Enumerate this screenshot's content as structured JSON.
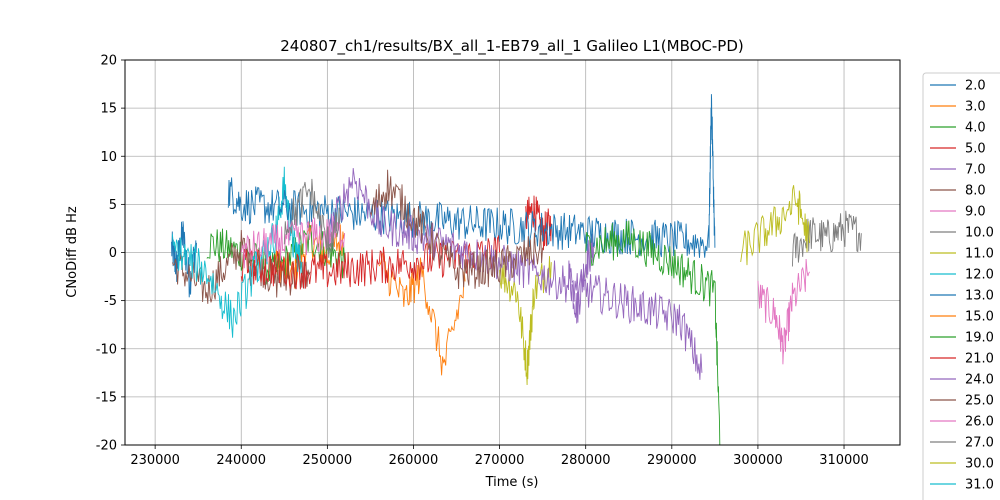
{
  "chart_data": {
    "type": "line",
    "title": "240807_ch1/results/BX_all_1-EB79_all_1 Galileo L1(MBOC-PD)",
    "xlabel": "Time (s)",
    "ylabel": "CNoDiff dB Hz",
    "xlim": [
      226500,
      316500
    ],
    "ylim": [
      -20,
      20
    ],
    "xticks": [
      230000,
      240000,
      250000,
      260000,
      270000,
      280000,
      290000,
      300000,
      310000
    ],
    "yticks": [
      -20,
      -15,
      -10,
      -5,
      0,
      5,
      10,
      15,
      20
    ],
    "grid": true,
    "legend_position": "outside-right",
    "series": [
      {
        "name": "2.0",
        "color": "#1f77b4",
        "x": [
          231900,
          232500,
          233200,
          234000,
          234800
        ],
        "y": [
          0.5,
          -1.5,
          2.0,
          -3.0,
          1.0
        ]
      },
      {
        "name": "3.0",
        "color": "#ff7f0e",
        "x": [
          244000,
          246000,
          248000,
          250000,
          252000
        ],
        "y": [
          -1.0,
          -2.5,
          1.5,
          -0.5,
          2.0
        ]
      },
      {
        "name": "4.0",
        "color": "#2ca02c",
        "x": [
          236000,
          240000,
          244000,
          248000,
          252000
        ],
        "y": [
          1.0,
          0.0,
          -2.0,
          1.5,
          -1.0
        ]
      },
      {
        "name": "5.0",
        "color": "#d62728",
        "x": [
          273000,
          274000,
          275000,
          276000
        ],
        "y": [
          3.5,
          4.5,
          2.0,
          3.0
        ]
      },
      {
        "name": "7.0",
        "color": "#9467bd",
        "x": [
          278000,
          279000,
          280000,
          281000
        ],
        "y": [
          -2.0,
          -6.0,
          -1.0,
          0.5
        ]
      },
      {
        "name": "8.0",
        "color": "#8c564b",
        "x": [
          232000,
          236000,
          240000,
          244000,
          248000
        ],
        "y": [
          -1.0,
          -4.0,
          0.5,
          -3.0,
          -2.0
        ]
      },
      {
        "name": "9.0",
        "color": "#e377c2",
        "x": [
          300000,
          302000,
          303000,
          304000,
          306000
        ],
        "y": [
          -4.5,
          -6.5,
          -10.0,
          -5.0,
          -2.0
        ]
      },
      {
        "name": "10.0",
        "color": "#7f7f7f",
        "x": [
          304000,
          306000,
          308000,
          310000,
          312000
        ],
        "y": [
          0.0,
          2.0,
          1.5,
          2.5,
          2.0
        ]
      },
      {
        "name": "11.0",
        "color": "#bcbd22",
        "x": [
          270000,
          272000,
          273200,
          274000,
          276000
        ],
        "y": [
          -2.0,
          -4.0,
          -12.0,
          -4.0,
          -1.0
        ]
      },
      {
        "name": "12.0",
        "color": "#17becf",
        "x": [
          242000,
          244000,
          245000,
          246000,
          247000
        ],
        "y": [
          -1.0,
          2.0,
          7.0,
          1.0,
          -1.0
        ]
      },
      {
        "name": "13.0",
        "color": "#1f77b4",
        "x": [
          238500,
          240000,
          294300,
          294600,
          295000
        ],
        "y": [
          6.5,
          5.0,
          1.0,
          16.0,
          0.5
        ]
      },
      {
        "name": "15.0",
        "color": "#ff7f0e",
        "x": [
          256000,
          259000,
          261000,
          263500,
          266000
        ],
        "y": [
          -1.0,
          -5.0,
          -2.0,
          -12.0,
          -3.0
        ]
      },
      {
        "name": "19.0",
        "color": "#2ca02c",
        "x": [
          280000,
          285000,
          290000,
          295000,
          295600
        ],
        "y": [
          0.5,
          1.5,
          -1.0,
          -4.0,
          -20.0
        ]
      },
      {
        "name": "21.0",
        "color": "#d62728",
        "x": [
          240000,
          250000,
          260000,
          270000
        ],
        "y": [
          -1.5,
          -2.0,
          -1.0,
          0.0
        ]
      },
      {
        "name": "24.0",
        "color": "#9467bd",
        "x": [
          250000,
          253000,
          256000,
          291000,
          293500
        ],
        "y": [
          1.5,
          8.0,
          3.0,
          -7.0,
          -12.5
        ]
      },
      {
        "name": "25.0",
        "color": "#8c564b",
        "x": [
          255000,
          257000,
          265000,
          270000,
          275000
        ],
        "y": [
          4.0,
          7.0,
          -2.0,
          -1.5,
          0.5
        ]
      },
      {
        "name": "26.0",
        "color": "#e377c2",
        "x": [
          240000,
          246000,
          252000
        ],
        "y": [
          0.0,
          1.5,
          2.0
        ]
      },
      {
        "name": "27.0",
        "color": "#7f7f7f",
        "x": [
          245000,
          248000,
          250000,
          251500
        ],
        "y": [
          2.5,
          6.5,
          1.0,
          3.0
        ]
      },
      {
        "name": "30.0",
        "color": "#bcbd22",
        "x": [
          298000,
          302000,
          304500,
          306000
        ],
        "y": [
          0.0,
          3.0,
          5.5,
          1.0
        ]
      },
      {
        "name": "31.0",
        "color": "#17becf",
        "x": [
          232000,
          236000,
          239000,
          242000
        ],
        "y": [
          0.5,
          -2.0,
          -7.0,
          -1.0
        ]
      }
    ],
    "legend_items": [
      "2.0",
      "3.0",
      "4.0",
      "5.0",
      "7.0",
      "8.0",
      "9.0",
      "10.0",
      "11.0",
      "12.0",
      "13.0",
      "15.0",
      "19.0",
      "21.0",
      "24.0",
      "25.0",
      "26.0",
      "27.0",
      "30.0",
      "31.0"
    ]
  }
}
